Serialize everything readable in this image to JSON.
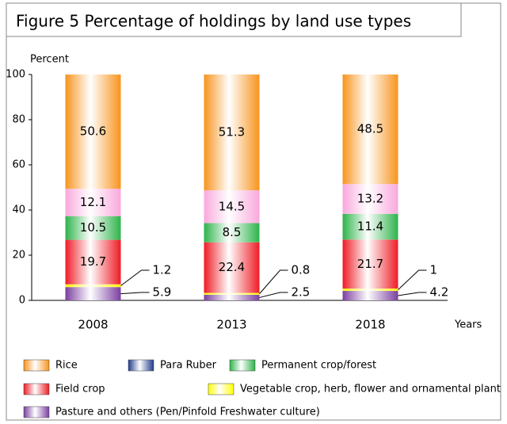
{
  "chart_data": {
    "type": "stacked_bar",
    "title": "Figure  5  Percentage of holdings by land use types",
    "y_label": "Percent",
    "x_label": "Years",
    "categories": [
      "2008",
      "2013",
      "2018"
    ],
    "series": [
      {
        "name": "Pasture and others (Pen/Pinfold Freshwater culture)",
        "color": "#7b3fa0",
        "values": [
          5.9,
          2.5,
          4.2
        ]
      },
      {
        "name": "Vegetable crop, herb, flower and ornamental plant",
        "color": "#ffff00",
        "values": [
          1.2,
          0.8,
          1.0
        ]
      },
      {
        "name": "Field crop",
        "color": "#ee1c25",
        "values": [
          19.7,
          22.4,
          21.7
        ]
      },
      {
        "name": "Permanent crop/forest",
        "color": "#2db34a",
        "values": [
          10.5,
          8.5,
          11.4
        ]
      },
      {
        "name": "Para Ruber",
        "color": "#f9a8dc",
        "legend_color": "#1f3b8c",
        "values": [
          12.1,
          14.5,
          13.2
        ]
      },
      {
        "name": "Rice",
        "color": "#f7941d",
        "values": [
          50.6,
          51.3,
          48.5
        ]
      }
    ],
    "ylim": [
      0,
      100
    ],
    "yticks": [
      0,
      20,
      40,
      60,
      80,
      100
    ]
  }
}
